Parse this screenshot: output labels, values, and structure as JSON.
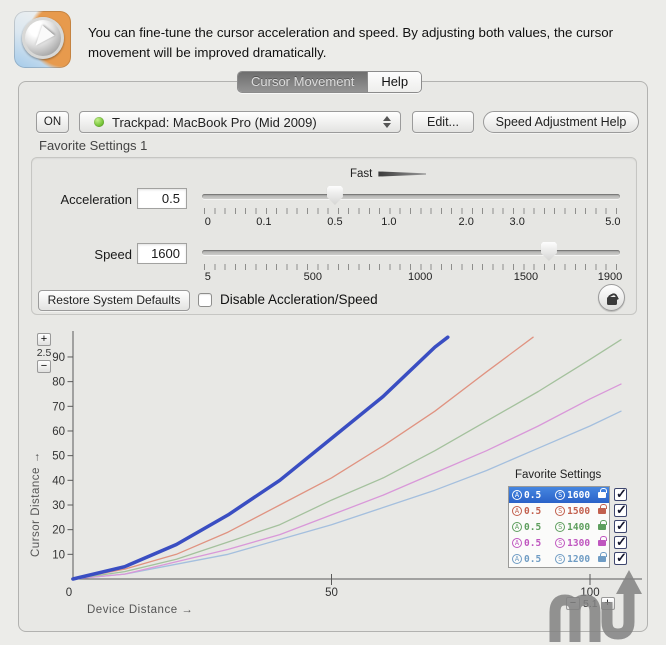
{
  "header": {
    "description": "You can fine-tune the cursor acceleration and speed. By adjusting both values, the cursor movement will be improved dramatically."
  },
  "tabs": {
    "cursor_movement": "Cursor Movement",
    "help": "Help"
  },
  "device_row": {
    "on": "ON",
    "device": "Trackpad: MacBook Pro (Mid 2009)",
    "edit": "Edit...",
    "speed_help": "Speed Adjustment Help"
  },
  "favorites_title": "Favorite Settings 1",
  "fast_label": "Fast",
  "acceleration": {
    "label": "Acceleration",
    "value": "0.5",
    "ticks": [
      "0",
      "0.1",
      "0.5",
      "1.0",
      "2.0",
      "3.0",
      "5.0"
    ],
    "tick_pos": [
      1.4,
      14.8,
      31.8,
      44.7,
      63.2,
      75.4,
      98.3
    ],
    "thumb_pos": 31.8
  },
  "speed": {
    "label": "Speed",
    "value": "1600",
    "ticks": [
      "5",
      "500",
      "1000",
      "1500",
      "1900"
    ],
    "tick_pos": [
      1.4,
      26.5,
      52.2,
      77.5,
      97.6
    ],
    "thumb_pos": 83
  },
  "footer_controls": {
    "restore": "Restore System Defaults",
    "disable": "Disable Accleration/Speed",
    "disable_checked": false
  },
  "zoom_y": {
    "plus": "+",
    "value": "2.5",
    "minus": "−"
  },
  "zoom_x": {
    "minus": "−",
    "value": "5.1",
    "plus": "+"
  },
  "icons": {
    "device_status": "green-dot",
    "popup_arrows": "up-down-arrows",
    "settings_lock": "open-padlock",
    "legend_lock": "padlock",
    "watermark": "mu-arrow-logo"
  },
  "chart_data": {
    "type": "line",
    "xlabel": "Device Distance →",
    "ylabel": "Cursor Distance →",
    "xlim": [
      0,
      110
    ],
    "ylim": [
      0,
      100
    ],
    "xticks": [
      0,
      50,
      100
    ],
    "yticks": [
      10,
      20,
      30,
      40,
      50,
      60,
      70,
      80,
      90
    ],
    "grid": false,
    "legend_position": "lower-right",
    "series": [
      {
        "name": "A0.5 S1600",
        "color": "#3a4ec2",
        "width": 3.5,
        "points": [
          [
            0,
            0
          ],
          [
            10,
            5
          ],
          [
            20,
            14
          ],
          [
            30,
            26
          ],
          [
            40,
            40
          ],
          [
            50,
            57
          ],
          [
            60,
            74
          ],
          [
            70,
            94
          ],
          [
            72.5,
            98
          ]
        ]
      },
      {
        "name": "A0.5 S1500",
        "color": "#e09381",
        "width": 1.3,
        "points": [
          [
            0,
            0
          ],
          [
            10,
            4
          ],
          [
            20,
            10
          ],
          [
            30,
            19
          ],
          [
            40,
            30
          ],
          [
            50,
            41
          ],
          [
            60,
            54
          ],
          [
            70,
            68
          ],
          [
            80,
            84
          ],
          [
            89,
            98
          ]
        ]
      },
      {
        "name": "A0.5 S1400",
        "color": "#a4c19d",
        "width": 1.3,
        "points": [
          [
            0,
            0
          ],
          [
            10,
            3
          ],
          [
            20,
            8
          ],
          [
            30,
            15
          ],
          [
            40,
            22
          ],
          [
            50,
            32
          ],
          [
            60,
            41
          ],
          [
            70,
            52
          ],
          [
            80,
            64
          ],
          [
            90,
            76
          ],
          [
            100,
            89
          ],
          [
            106,
            97
          ]
        ]
      },
      {
        "name": "A0.5 S1300",
        "color": "#d998d9",
        "width": 1.3,
        "points": [
          [
            0,
            0
          ],
          [
            10,
            2
          ],
          [
            20,
            7
          ],
          [
            30,
            12
          ],
          [
            40,
            18
          ],
          [
            50,
            26
          ],
          [
            60,
            34
          ],
          [
            70,
            43
          ],
          [
            80,
            52
          ],
          [
            90,
            62
          ],
          [
            100,
            73
          ],
          [
            106,
            79
          ]
        ]
      },
      {
        "name": "A0.5 S1200",
        "color": "#a4bfde",
        "width": 1.3,
        "points": [
          [
            0,
            0
          ],
          [
            10,
            2
          ],
          [
            20,
            6
          ],
          [
            30,
            10
          ],
          [
            40,
            16
          ],
          [
            50,
            22
          ],
          [
            60,
            29
          ],
          [
            70,
            36
          ],
          [
            80,
            44
          ],
          [
            90,
            53
          ],
          [
            100,
            62
          ],
          [
            106,
            68
          ]
        ]
      }
    ]
  },
  "legend": {
    "title": "Favorite Settings",
    "badge_a": "A",
    "badge_s": "S",
    "rows": [
      {
        "a": "0.5",
        "s": "1600",
        "color": "#ffffff",
        "selected": true,
        "checked": true
      },
      {
        "a": "0.5",
        "s": "1500",
        "color": "#c2604e",
        "selected": false,
        "checked": true
      },
      {
        "a": "0.5",
        "s": "1400",
        "color": "#5d9e5d",
        "selected": false,
        "checked": true
      },
      {
        "a": "0.5",
        "s": "1300",
        "color": "#bf56bf",
        "selected": false,
        "checked": true
      },
      {
        "a": "0.5",
        "s": "1200",
        "color": "#6f9cc4",
        "selected": false,
        "checked": true
      }
    ]
  }
}
